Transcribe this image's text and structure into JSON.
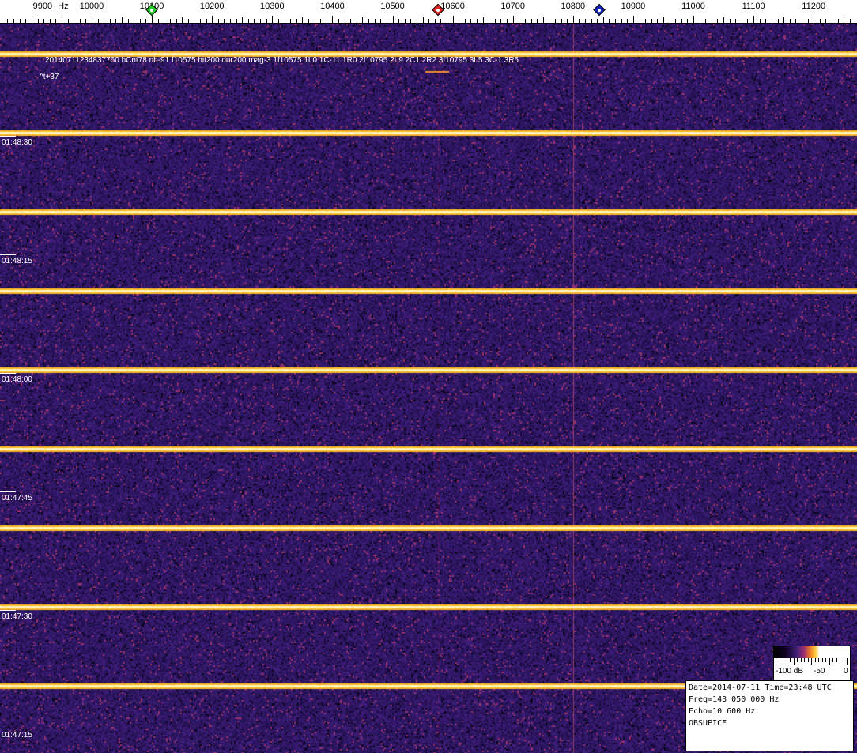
{
  "chart_data": {
    "type": "heatmap",
    "title": "",
    "x_unit": "Hz",
    "x_ticks": [
      "9900",
      "10000",
      "10100",
      "10200",
      "10300",
      "10400",
      "10500",
      "10600",
      "10700",
      "10800",
      "10900",
      "11000",
      "11100",
      "11200"
    ],
    "x_first_label_suffix": "Hz",
    "xlim": [
      9850,
      11260
    ],
    "y_ticks": [
      "01:48:30",
      "01:48:15",
      "01:48:00",
      "01:47:45",
      "01:47:30",
      "01:47:15"
    ],
    "markers": [
      {
        "freq": 10100,
        "color": "#22cc22"
      },
      {
        "freq": 10575,
        "color": "#dd2222"
      },
      {
        "freq": 10843,
        "color": "#1122bb"
      }
    ],
    "colorscale": {
      "min_label": "-100 dB",
      "mid_label": "-50",
      "max_label": "0"
    },
    "palette": {
      "background": "#2e1a6e",
      "line": "#ffd040",
      "vertical_line": "#a03050"
    }
  },
  "annotation": {
    "detection": "20140711234837760 hCnt78 nb-91 f10575 hit200 dur200 mag-3 1f10575 1L0 1C-11 1R0 2f10795 2L9 2C1 2R2 3f10795 3L5 3C-1 3R5",
    "offset": "^t+37"
  },
  "info": {
    "date_line": "Date=2014-07-11 Time=23:48 UTC",
    "freq_line": "Freq=143 050 000 Hz",
    "echo_line": "Echo=10 600 Hz",
    "station": "OBSUPICE"
  }
}
